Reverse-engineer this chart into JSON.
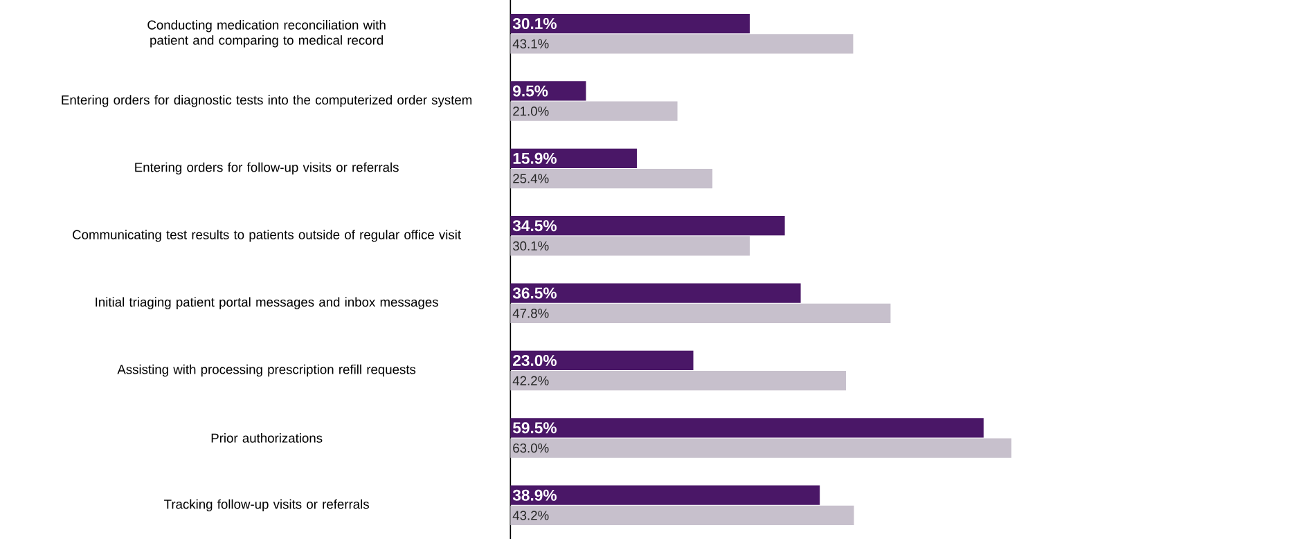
{
  "chart_data": {
    "type": "bar",
    "orientation": "horizontal",
    "categories": [
      "Conducting medication reconciliation with patient and comparing to medical record",
      "Entering orders for diagnostic tests into the computerized order system",
      "Entering orders for follow-up visits or referrals",
      "Communicating test results to patients outside of regular office visit",
      "Initial triaging patient portal messages and inbox messages",
      "Assisting with processing prescription refill requests",
      "Prior authorizations",
      "Tracking follow-up visits or referrals"
    ],
    "series": [
      {
        "color": "#4a1767",
        "values": [
          30.1,
          9.5,
          15.9,
          34.5,
          36.5,
          23.0,
          59.5,
          38.9
        ],
        "value_labels": [
          "30.1%",
          "9.5%",
          "15.9%",
          "34.5%",
          "36.5%",
          "23.0%",
          "59.5%",
          "38.9%"
        ]
      },
      {
        "color": "#c7c0cc",
        "values": [
          43.1,
          21.0,
          25.4,
          30.1,
          47.8,
          42.2,
          63.0,
          43.2
        ],
        "value_labels": [
          "43.1%",
          "21.0%",
          "25.4%",
          "30.1%",
          "47.8%",
          "42.2%",
          "63.0%",
          "43.2%"
        ]
      }
    ]
  }
}
